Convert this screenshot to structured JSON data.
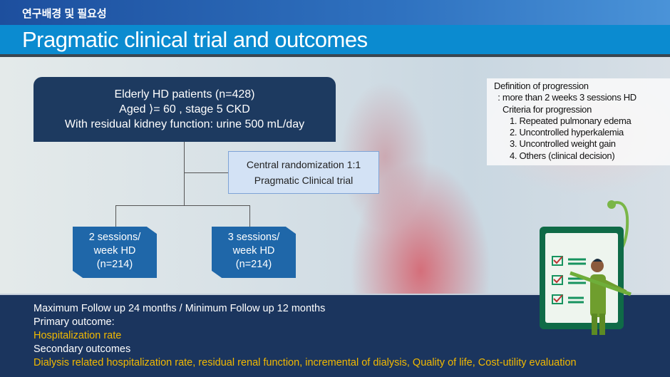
{
  "header": {
    "section": "연구배경 및 필요성",
    "title": "Pragmatic clinical trial  and  outcomes"
  },
  "flow": {
    "population": [
      "Elderly HD patients (n=428)",
      "Aged ⟩= 60 , stage 5 CKD",
      "With residual kidney function: urine 500 mL/day"
    ],
    "randomization": [
      "Central randomization 1:1",
      "Pragmatic Clinical trial"
    ],
    "arms": [
      {
        "lines": [
          "2 sessions/",
          "week HD",
          "(n=214)"
        ]
      },
      {
        "lines": [
          "3 sessions/",
          "week HD",
          "(n=214)"
        ]
      }
    ]
  },
  "definition": {
    "lines": [
      "Definition of progression",
      " : more than 2 weeks 3 sessions HD",
      "Criteria for progression"
    ],
    "criteria": [
      "1. Repeated pulmonary edema",
      "2. Uncontrolled hyperkalemia",
      "3. Uncontrolled weight gain",
      "4. Others (clinical decision)"
    ]
  },
  "outcomes": {
    "followup": "Maximum Follow up 24 months / Minimum  Follow up 12 months",
    "primary_label": "Primary  outcome:",
    "primary": "Hospitalization rate",
    "secondary_label": "Secondary outcomes",
    "secondary": "Dialysis related hospitalization rate, residual renal function, incremental of dialysis, Quality of life, Cost-utility evaluation"
  },
  "colors": {
    "navy": "#1b355e",
    "accent_yellow": "#f2b900",
    "arm_blue": "#1f67a9"
  }
}
